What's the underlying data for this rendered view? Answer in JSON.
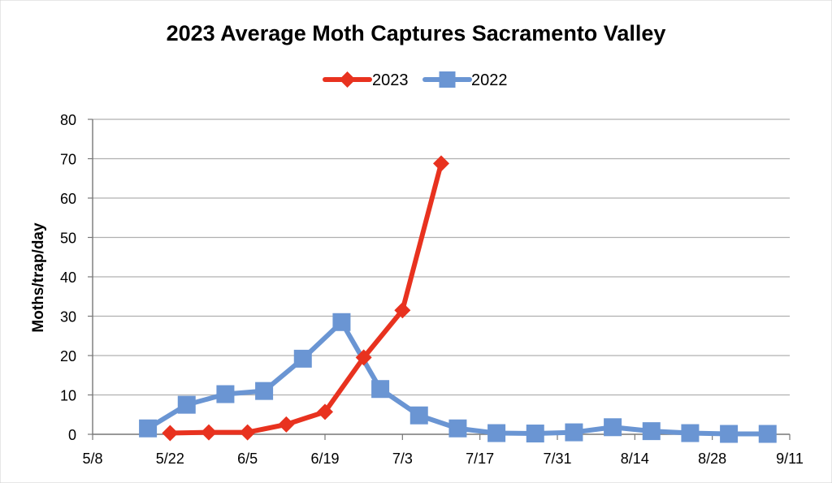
{
  "chart_data": {
    "type": "line",
    "title": "2023 Average Moth Captures Sacramento Valley",
    "xlabel": "",
    "ylabel": "Moths/trap/day",
    "ylim": [
      0,
      80
    ],
    "yticks": [
      0,
      10,
      20,
      30,
      40,
      50,
      60,
      70,
      80
    ],
    "xlim_day": [
      0,
      126
    ],
    "xticks": [
      {
        "day": 0,
        "label": "5/8"
      },
      {
        "day": 14,
        "label": "5/22"
      },
      {
        "day": 28,
        "label": "6/5"
      },
      {
        "day": 42,
        "label": "6/19"
      },
      {
        "day": 56,
        "label": "7/3"
      },
      {
        "day": 70,
        "label": "7/17"
      },
      {
        "day": 84,
        "label": "7/31"
      },
      {
        "day": 98,
        "label": "8/14"
      },
      {
        "day": 112,
        "label": "8/28"
      },
      {
        "day": 126,
        "label": "9/11"
      }
    ],
    "grid": true,
    "legend_position": "top-center",
    "series": [
      {
        "name": "2023",
        "color": "#e8321f",
        "marker": "diamond",
        "points": [
          {
            "day": 14,
            "y": 0.3
          },
          {
            "day": 21,
            "y": 0.5
          },
          {
            "day": 28,
            "y": 0.5
          },
          {
            "day": 35,
            "y": 2.5
          },
          {
            "day": 42,
            "y": 5.7
          },
          {
            "day": 49,
            "y": 19.5
          },
          {
            "day": 56,
            "y": 31.5
          },
          {
            "day": 63,
            "y": 68.8
          }
        ]
      },
      {
        "name": "2022",
        "color": "#6a95d3",
        "marker": "square",
        "points": [
          {
            "day": 10,
            "y": 1.5
          },
          {
            "day": 17,
            "y": 7.5
          },
          {
            "day": 24,
            "y": 10.2
          },
          {
            "day": 31,
            "y": 11.0
          },
          {
            "day": 38,
            "y": 19.2
          },
          {
            "day": 45,
            "y": 28.5
          },
          {
            "day": 52,
            "y": 11.5
          },
          {
            "day": 59,
            "y": 4.8
          },
          {
            "day": 66,
            "y": 1.5
          },
          {
            "day": 73,
            "y": 0.3
          },
          {
            "day": 80,
            "y": 0.2
          },
          {
            "day": 87,
            "y": 0.5
          },
          {
            "day": 94,
            "y": 1.8
          },
          {
            "day": 101,
            "y": 0.8
          },
          {
            "day": 108,
            "y": 0.3
          },
          {
            "day": 115,
            "y": 0.1
          },
          {
            "day": 122,
            "y": 0.1
          }
        ]
      }
    ]
  }
}
